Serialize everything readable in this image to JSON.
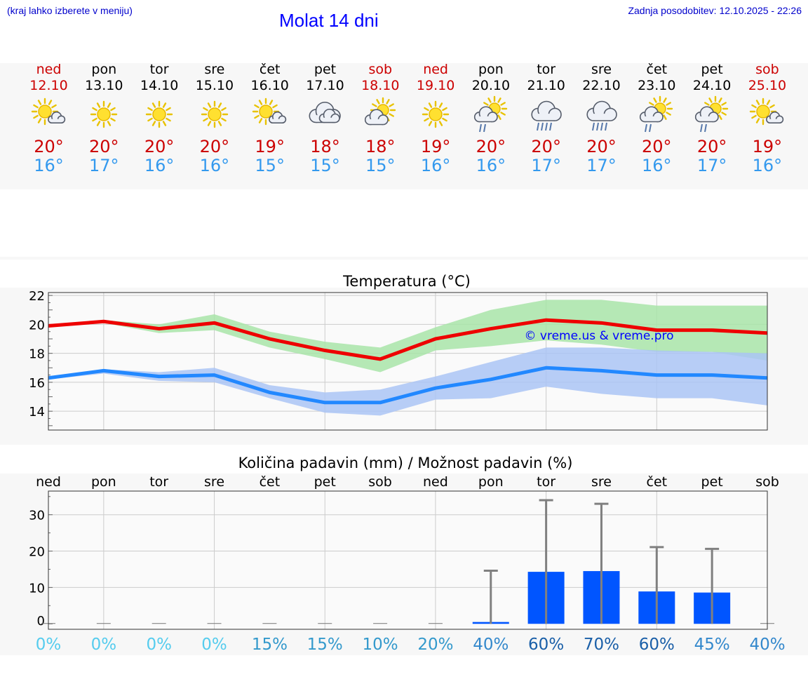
{
  "header": {
    "menu_note": "(kraj lahko izberete v meniju)",
    "title": "Molat 14 dni",
    "updated": "Zadnja posodobitev: 12.10.2025 - 22:26"
  },
  "days": [
    {
      "name": "ned",
      "date": "12.10",
      "weekend": true,
      "icon": "sun-cloud-icon",
      "tmax": "20°",
      "tmin": "16°"
    },
    {
      "name": "pon",
      "date": "13.10",
      "weekend": false,
      "icon": "sun-icon",
      "tmax": "20°",
      "tmin": "17°"
    },
    {
      "name": "tor",
      "date": "14.10",
      "weekend": false,
      "icon": "sun-icon",
      "tmax": "20°",
      "tmin": "16°"
    },
    {
      "name": "sre",
      "date": "15.10",
      "weekend": false,
      "icon": "sun-icon",
      "tmax": "20°",
      "tmin": "16°"
    },
    {
      "name": "čet",
      "date": "16.10",
      "weekend": false,
      "icon": "sun-cloud-icon",
      "tmax": "19°",
      "tmin": "15°"
    },
    {
      "name": "pet",
      "date": "17.10",
      "weekend": false,
      "icon": "cloud-icon",
      "tmax": "18°",
      "tmin": "15°"
    },
    {
      "name": "sob",
      "date": "18.10",
      "weekend": true,
      "icon": "cloud-sun-icon",
      "tmax": "18°",
      "tmin": "15°"
    },
    {
      "name": "ned",
      "date": "19.10",
      "weekend": true,
      "icon": "sun-icon",
      "tmax": "19°",
      "tmin": "16°"
    },
    {
      "name": "pon",
      "date": "20.10",
      "weekend": false,
      "icon": "sun-cloud-rain-icon",
      "tmax": "20°",
      "tmin": "16°"
    },
    {
      "name": "tor",
      "date": "21.10",
      "weekend": false,
      "icon": "cloud-rain-icon",
      "tmax": "20°",
      "tmin": "17°"
    },
    {
      "name": "sre",
      "date": "22.10",
      "weekend": false,
      "icon": "cloud-rain-icon",
      "tmax": "20°",
      "tmin": "17°"
    },
    {
      "name": "čet",
      "date": "23.10",
      "weekend": false,
      "icon": "sun-cloud-rain-icon",
      "tmax": "20°",
      "tmin": "16°"
    },
    {
      "name": "pet",
      "date": "24.10",
      "weekend": false,
      "icon": "sun-cloud-rain-icon",
      "tmax": "20°",
      "tmin": "17°"
    },
    {
      "name": "sob",
      "date": "25.10",
      "weekend": true,
      "icon": "sun-cloud-icon",
      "tmax": "19°",
      "tmin": "16°"
    }
  ],
  "chart_data": [
    {
      "type": "line",
      "title": "Temperatura (°C)",
      "watermark": "© vreme.us & vreme.pro",
      "ylim": [
        12.7,
        22.2
      ],
      "yticks": [
        14,
        16,
        18,
        20,
        22
      ],
      "x": [
        0,
        1,
        2,
        3,
        4,
        5,
        6,
        7,
        8,
        9,
        10,
        11,
        12,
        13
      ],
      "grid": true,
      "series": [
        {
          "role": "max",
          "color": "#ee0000",
          "band_color": "#a8e4a8",
          "values": [
            19.9,
            20.2,
            19.7,
            20.1,
            19.0,
            18.2,
            17.6,
            19.0,
            19.7,
            20.3,
            20.1,
            19.6,
            19.6,
            19.4
          ],
          "band_low": [
            19.8,
            20.1,
            19.4,
            19.6,
            18.4,
            17.6,
            16.7,
            18.2,
            18.5,
            18.9,
            18.6,
            18.1,
            18.1,
            17.5
          ],
          "band_high": [
            20.0,
            20.3,
            20.0,
            20.7,
            19.5,
            18.8,
            18.4,
            19.8,
            21.0,
            21.7,
            21.7,
            21.3,
            21.3,
            21.3
          ]
        },
        {
          "role": "min",
          "color": "#2288ff",
          "band_color": "#aac4f4",
          "values": [
            16.3,
            16.8,
            16.4,
            16.5,
            15.3,
            14.6,
            14.6,
            15.6,
            16.2,
            17.0,
            16.8,
            16.5,
            16.5,
            16.3
          ],
          "band_low": [
            16.2,
            16.6,
            16.1,
            16.0,
            14.9,
            13.9,
            13.7,
            14.8,
            14.9,
            15.7,
            15.2,
            14.9,
            14.9,
            14.4
          ],
          "band_high": [
            16.4,
            16.9,
            16.7,
            17.0,
            15.8,
            15.3,
            15.5,
            16.4,
            17.4,
            18.4,
            18.4,
            18.2,
            18.1,
            18.0
          ]
        }
      ]
    },
    {
      "type": "bar",
      "title": "Količina padavin (mm) / Možnost padavin (%)",
      "categories": [
        "ned",
        "pon",
        "tor",
        "sre",
        "čet",
        "pet",
        "sob",
        "ned",
        "pon",
        "tor",
        "sre",
        "čet",
        "pet",
        "sob"
      ],
      "ylim": [
        -1.5,
        36.5
      ],
      "yticks": [
        0,
        10,
        20,
        30
      ],
      "grid": true,
      "bar_color": "#0055ff",
      "error_color": "#808080",
      "values": [
        0,
        0,
        0,
        0,
        0,
        0,
        0,
        0,
        0.5,
        14.3,
        14.5,
        8.9,
        8.6,
        0
      ],
      "error_max": [
        0,
        0,
        0,
        0,
        0,
        0,
        0,
        0,
        14.6,
        34.0,
        33.0,
        21.1,
        20.6,
        0
      ],
      "probabilities": [
        "0%",
        "0%",
        "0%",
        "0%",
        "15%",
        "15%",
        "10%",
        "20%",
        "40%",
        "60%",
        "70%",
        "60%",
        "45%",
        "40%"
      ],
      "probability_colors": [
        "#55ccee",
        "#55ccee",
        "#55ccee",
        "#55ccee",
        "#3399cc",
        "#3399cc",
        "#3399cc",
        "#3399cc",
        "#3388cc",
        "#1a5fa8",
        "#1a5fa8",
        "#1a5fa8",
        "#3388cc",
        "#3388cc"
      ]
    }
  ]
}
